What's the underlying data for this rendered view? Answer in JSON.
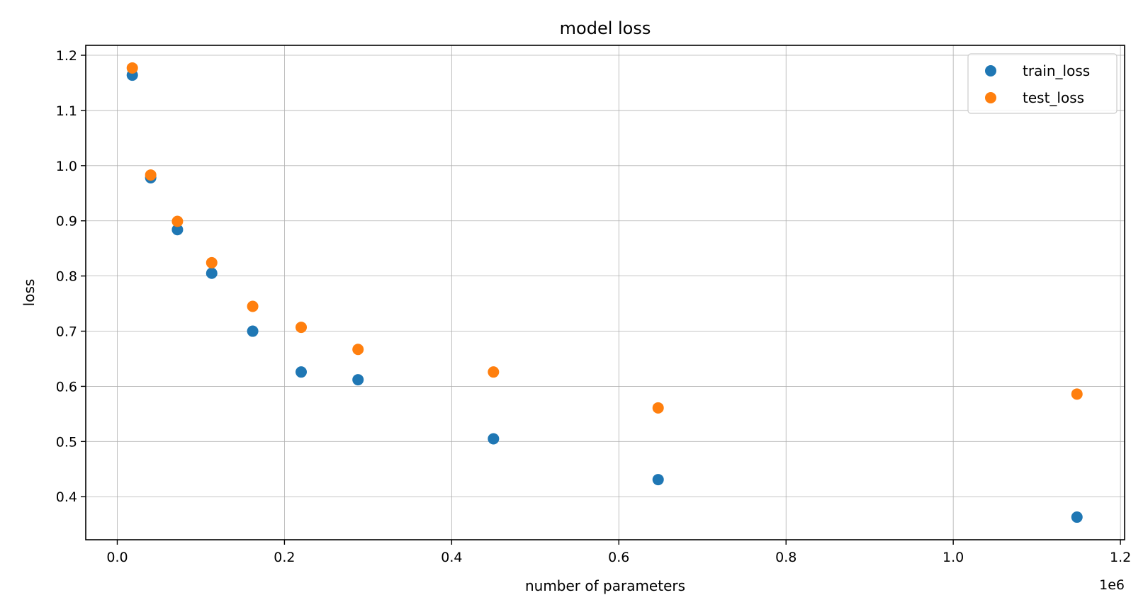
{
  "chart_data": {
    "type": "scatter",
    "title": "model loss",
    "xlabel": "number of parameters",
    "ylabel": "loss",
    "x_offset_text": "1e6",
    "xlim": [
      -0.0377,
      1.205
    ],
    "ylim": [
      0.322,
      1.218
    ],
    "xticks": [
      0.0,
      0.2,
      0.4,
      0.6,
      0.8,
      1.0,
      1.2
    ],
    "xtick_labels": [
      "0.0",
      "0.2",
      "0.4",
      "0.6",
      "0.8",
      "1.0",
      "1.2"
    ],
    "yticks": [
      0.4,
      0.5,
      0.6,
      0.7,
      0.8,
      0.9,
      1.0,
      1.1,
      1.2
    ],
    "ytick_labels": [
      "0.4",
      "0.5",
      "0.6",
      "0.7",
      "0.8",
      "0.9",
      "1.0",
      "1.1",
      "1.2"
    ],
    "grid": true,
    "legend_position": "top-right",
    "x": [
      0.018,
      0.04,
      0.072,
      0.113,
      0.162,
      0.22,
      0.288,
      0.45,
      0.647,
      1.148
    ],
    "series": [
      {
        "name": "train_loss",
        "color": "#1f77b4",
        "values": [
          1.164,
          0.978,
          0.884,
          0.805,
          0.7,
          0.626,
          0.612,
          0.505,
          0.431,
          0.363
        ]
      },
      {
        "name": "test_loss",
        "color": "#ff7f0e",
        "values": [
          1.177,
          0.983,
          0.899,
          0.824,
          0.745,
          0.707,
          0.667,
          0.626,
          0.561,
          0.586
        ]
      }
    ]
  }
}
